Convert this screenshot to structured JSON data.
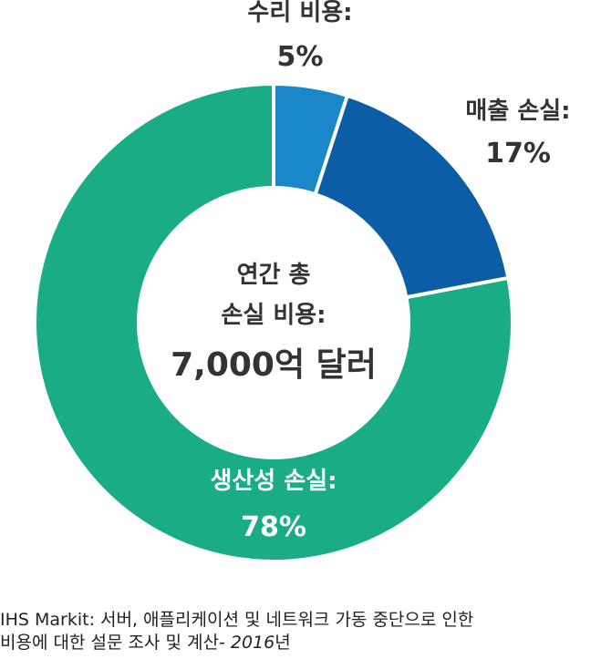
{
  "chart_data": {
    "type": "pie",
    "categories": [
      "수리 비용:",
      "매출 손실:",
      "생산성 손실:"
    ],
    "values": [
      5,
      17,
      78
    ],
    "value_labels": [
      "5%",
      "17%",
      "78%"
    ],
    "colors": [
      "#1a87c9",
      "#0b5ea6",
      "#1aad85"
    ],
    "center_text": [
      "연간 총",
      "손실 비용:",
      "7,000억 달러"
    ]
  },
  "label_colors": [
    "#333333",
    "#333333",
    "#ffffff"
  ],
  "center_colors": {
    "text": "#333333",
    "hole": "#ffffff"
  },
  "source": {
    "line1": "IHS Markit: 서버, 애플리케이션 및 네트워크 가동 중단으로 인한",
    "line2_prefix": "비용에 대한 설문 조사 및 계산- ",
    "line2_year": "2016",
    "line2_suffix": "년"
  }
}
